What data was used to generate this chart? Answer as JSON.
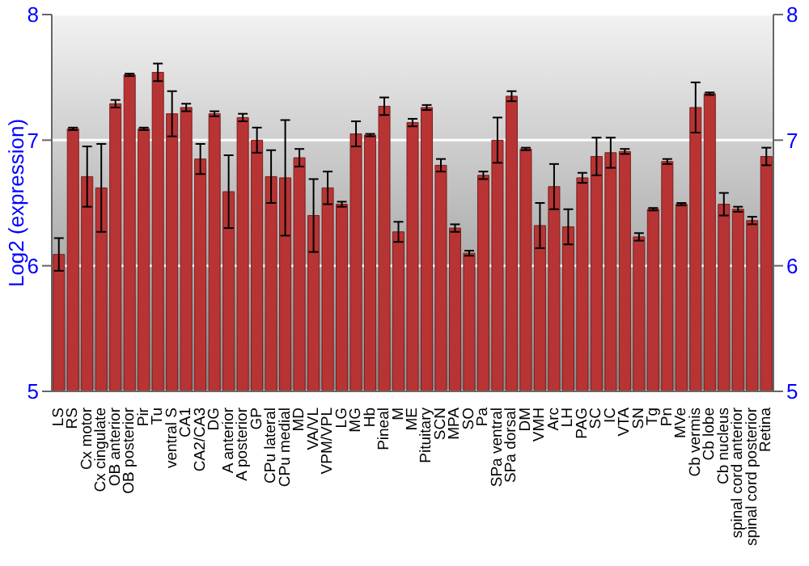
{
  "chart_data": {
    "type": "bar",
    "ylabel": "Log2 (expression)",
    "categories": [
      "LS",
      "RS",
      "Cx motor",
      "Cx cingulate",
      "OB anterior",
      "OB posterior",
      "Pir",
      "Tu",
      "ventral S",
      "CA1",
      "CA2/CA3",
      "DG",
      "A anterior",
      "A posterior",
      "GP",
      "CPu lateral",
      "CPu medial",
      "MD",
      "VA/VL",
      "VPM/VPL",
      "LG",
      "MG",
      "Hb",
      "Pineal",
      "M",
      "ME",
      "Pituitary",
      "SCN",
      "MPA",
      "SO",
      "Pa",
      "SPa ventral",
      "SPa dorsal",
      "DM",
      "VMH",
      "Arc",
      "LH",
      "PAG",
      "SC",
      "IC",
      "VTA",
      "SN",
      "Tg",
      "Pn",
      "MVe",
      "Cb vermis",
      "Cb lobe",
      "Cb nucleus",
      "spinal cord anterior",
      "spinal cord posterior",
      "Retina"
    ],
    "values": [
      6.09,
      7.09,
      6.71,
      6.62,
      7.29,
      7.52,
      7.09,
      7.54,
      7.21,
      7.26,
      6.85,
      7.21,
      6.59,
      7.18,
      7.0,
      6.71,
      6.7,
      6.86,
      6.4,
      6.62,
      6.49,
      7.05,
      7.04,
      7.27,
      6.27,
      7.14,
      7.26,
      6.8,
      6.3,
      6.1,
      6.72,
      7.0,
      7.35,
      6.93,
      6.32,
      6.63,
      6.31,
      6.7,
      6.87,
      6.9,
      6.91,
      6.23,
      6.45,
      6.83,
      6.49,
      7.26,
      7.37,
      6.49,
      6.45,
      6.36,
      6.87
    ],
    "errors": [
      0.13,
      0.01,
      0.24,
      0.35,
      0.03,
      0.01,
      0.01,
      0.07,
      0.18,
      0.03,
      0.12,
      0.02,
      0.29,
      0.03,
      0.1,
      0.21,
      0.46,
      0.07,
      0.29,
      0.13,
      0.02,
      0.1,
      0.01,
      0.07,
      0.08,
      0.03,
      0.02,
      0.05,
      0.03,
      0.02,
      0.03,
      0.18,
      0.04,
      0.01,
      0.18,
      0.18,
      0.14,
      0.04,
      0.15,
      0.12,
      0.02,
      0.03,
      0.01,
      0.02,
      0.01,
      0.2,
      0.01,
      0.09,
      0.02,
      0.03,
      0.07
    ],
    "color": "#b83434",
    "ylim": [
      5,
      8
    ],
    "yticks": [
      5,
      6,
      7,
      8
    ],
    "y2lim": [
      5,
      8
    ],
    "y2ticks": [
      5,
      6,
      7,
      8
    ],
    "grid": "y"
  }
}
